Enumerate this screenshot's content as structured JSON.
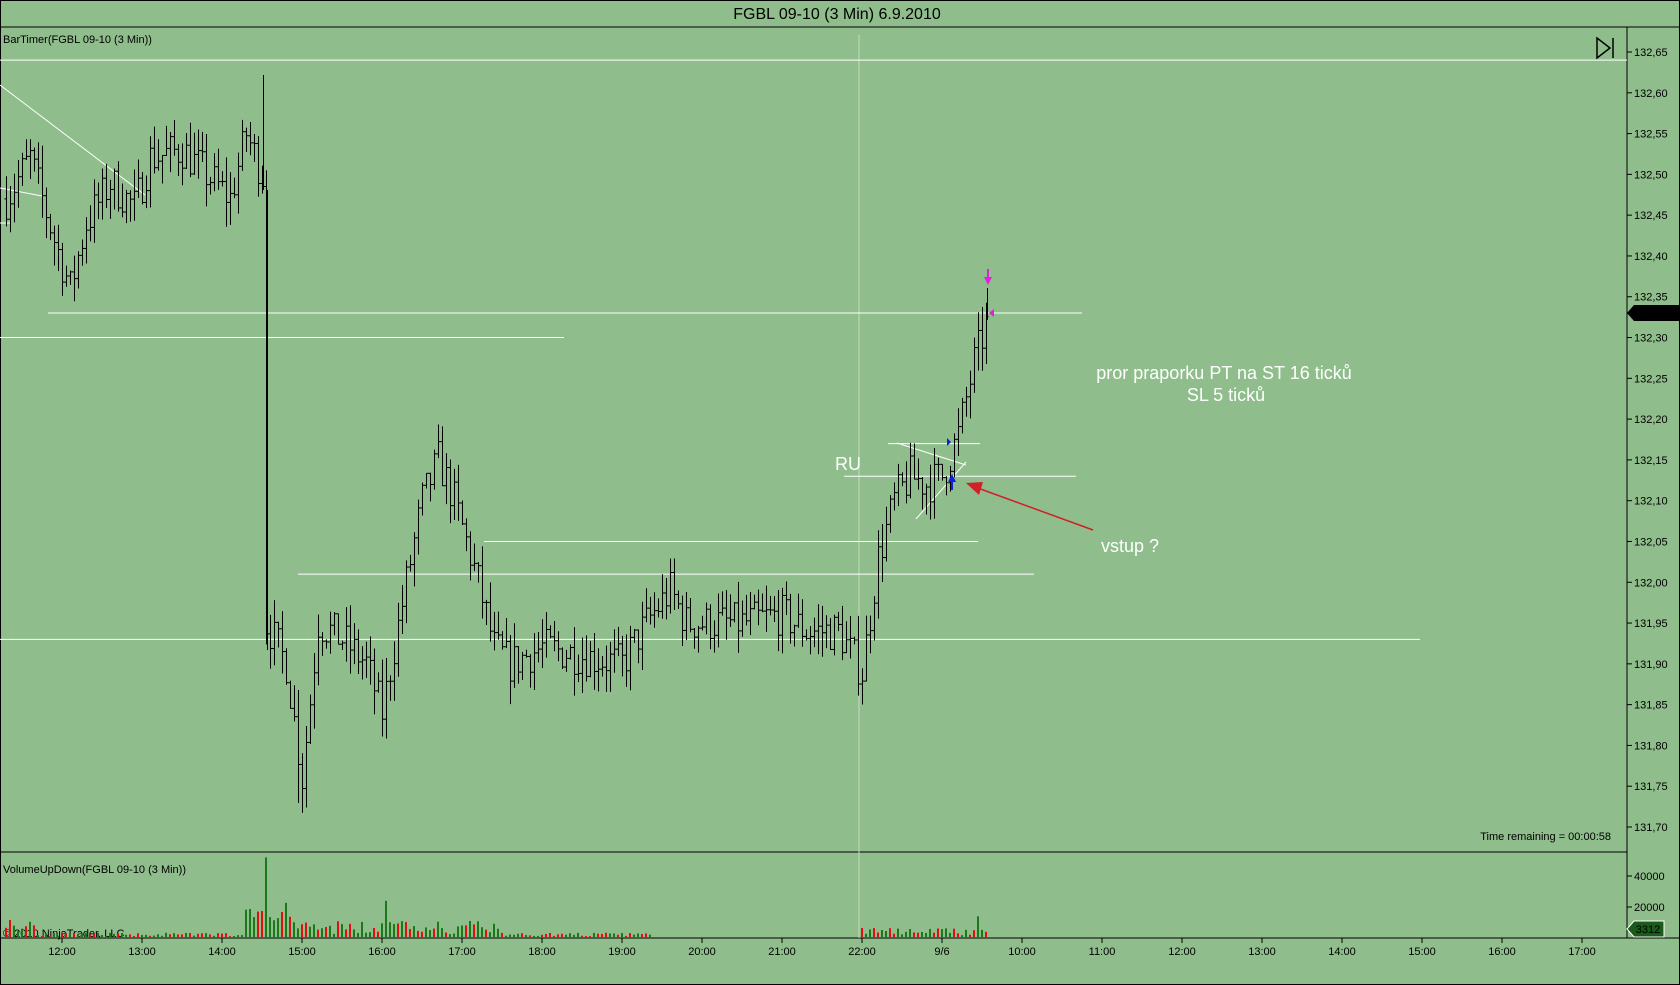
{
  "window": {
    "title": "FGBL 09-10 (3 Min)  6.9.2010"
  },
  "price_panel": {
    "label": "BarTimer(FGBL 09-10 (3 Min))",
    "timer_text": "Time remaining = 00:00:58",
    "current_price_label": "132,33"
  },
  "volume_panel": {
    "label": "VolumeUpDown(FGBL 09-10 (3 Min))",
    "current_volume_label": "3312",
    "copyright": "© 2010 NinjaTrader, LLC"
  },
  "annotations": {
    "ru": "RU",
    "note_line1": "pror praporku PT na ST 16 ticků",
    "note_line2": "SL 5 ticků",
    "entry": "vstup ?"
  },
  "colors": {
    "background": "#8fbd8b",
    "bars": "#000000",
    "lines": "#ffffff",
    "arrow": "#d0202a",
    "volume_up": "#1a7a1a",
    "volume_down": "#e01010",
    "marker_blue": "#1020e0",
    "marker_magenta": "#e020e0"
  },
  "chart_data": {
    "type": "ohlc",
    "ylim": [
      131.67,
      132.67
    ],
    "yticks": [
      "132,65",
      "132,60",
      "132,55",
      "132,50",
      "132,45",
      "132,40",
      "132,35",
      "132,30",
      "132,25",
      "132,20",
      "132,15",
      "132,10",
      "132,05",
      "132,00",
      "131,95",
      "131,90",
      "131,85",
      "131,80",
      "131,75",
      "131,70"
    ],
    "xticks": [
      "12:00",
      "13:00",
      "14:00",
      "15:00",
      "16:00",
      "17:00",
      "18:00",
      "19:00",
      "20:00",
      "21:00",
      "22:00",
      "9/6",
      "10:00",
      "11:00",
      "12:00",
      "13:00",
      "14:00",
      "15:00",
      "16:00",
      "17:00"
    ],
    "close_path": [
      [
        11.3,
        132.47
      ],
      [
        11.6,
        132.52
      ],
      [
        11.9,
        132.42
      ],
      [
        12.1,
        132.36
      ],
      [
        12.3,
        132.44
      ],
      [
        12.6,
        132.49
      ],
      [
        12.9,
        132.46
      ],
      [
        13.1,
        132.52
      ],
      [
        13.5,
        132.53
      ],
      [
        13.9,
        132.49
      ],
      [
        14.1,
        132.47
      ],
      [
        14.3,
        132.55
      ],
      [
        14.5,
        132.5
      ],
      [
        14.55,
        131.95
      ],
      [
        14.8,
        131.9
      ],
      [
        15.0,
        131.76
      ],
      [
        15.2,
        131.95
      ],
      [
        15.5,
        131.93
      ],
      [
        15.8,
        131.9
      ],
      [
        16.0,
        131.84
      ],
      [
        16.3,
        132.0
      ],
      [
        16.5,
        132.1
      ],
      [
        16.7,
        132.15
      ],
      [
        16.9,
        132.1
      ],
      [
        17.2,
        132.0
      ],
      [
        17.4,
        131.92
      ],
      [
        17.6,
        131.9
      ],
      [
        18.0,
        131.92
      ],
      [
        18.5,
        131.91
      ],
      [
        19.0,
        131.9
      ],
      [
        19.3,
        131.95
      ],
      [
        19.6,
        131.99
      ],
      [
        19.8,
        131.95
      ],
      [
        20.0,
        131.95
      ],
      [
        20.5,
        131.95
      ],
      [
        21.0,
        131.96
      ],
      [
        21.3,
        131.94
      ],
      [
        21.7,
        131.94
      ],
      [
        22.0,
        131.89
      ],
      [
        22.2,
        132.03
      ],
      [
        22.4,
        132.1
      ],
      [
        22.6,
        132.13
      ],
      [
        22.8,
        132.12
      ],
      [
        23.0,
        132.13
      ],
      [
        23.2,
        132.18
      ],
      [
        23.4,
        132.27
      ],
      [
        23.6,
        132.33
      ]
    ],
    "volume": {
      "ylim": [
        0,
        60000
      ],
      "yticks": [
        "40000",
        "20000"
      ]
    },
    "levels": [
      "132,64",
      "132,33",
      "132,30",
      "132,17",
      "132,13",
      "132,05",
      "132,01",
      "131,93"
    ]
  }
}
